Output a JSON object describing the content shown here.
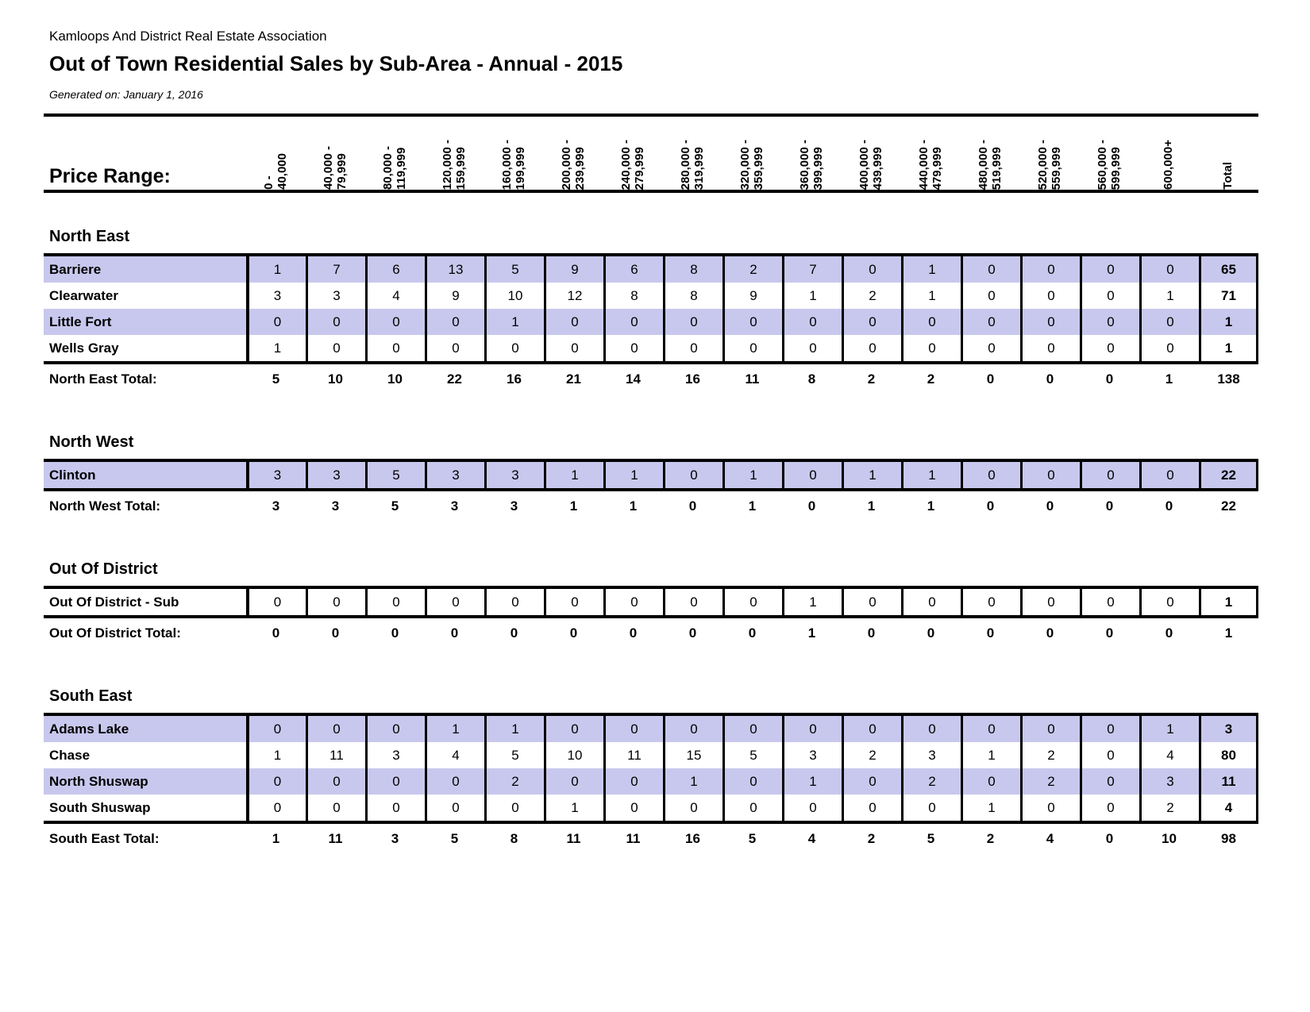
{
  "header": {
    "org": "Kamloops And District Real Estate Association",
    "title": "Out of Town Residential Sales by Sub-Area - Annual - 2015",
    "generated": "Generated on: January 1, 2016"
  },
  "price_range_label": "Price Range:",
  "columns": [
    "0 -\n40,000",
    "40,000 -\n79,999",
    "80,000 -\n119,999",
    "120,000 -\n159,999",
    "160,000 -\n199,999",
    "200,000 -\n239,999",
    "240,000 -\n279,999",
    "280,000 -\n319,999",
    "320,000 -\n359,999",
    "360,000 -\n399,999",
    "400,000 -\n439,999",
    "440,000 -\n479,999",
    "480,000 -\n519,999",
    "520,000 -\n559,999",
    "560,000 -\n599,999",
    "600,000+",
    "Total"
  ],
  "colors": {
    "band": "#c8c8ee",
    "line": "#000000"
  },
  "sections": [
    {
      "name": "North East",
      "rows": [
        {
          "label": "Barriere",
          "highlight": true,
          "values": [
            1,
            7,
            6,
            13,
            5,
            9,
            6,
            8,
            2,
            7,
            0,
            1,
            0,
            0,
            0,
            0
          ],
          "total": 65
        },
        {
          "label": "Clearwater",
          "highlight": false,
          "values": [
            3,
            3,
            4,
            9,
            10,
            12,
            8,
            8,
            9,
            1,
            2,
            1,
            0,
            0,
            0,
            1
          ],
          "total": 71
        },
        {
          "label": "Little Fort",
          "highlight": true,
          "values": [
            0,
            0,
            0,
            0,
            1,
            0,
            0,
            0,
            0,
            0,
            0,
            0,
            0,
            0,
            0,
            0
          ],
          "total": 1
        },
        {
          "label": "Wells Gray",
          "highlight": false,
          "values": [
            1,
            0,
            0,
            0,
            0,
            0,
            0,
            0,
            0,
            0,
            0,
            0,
            0,
            0,
            0,
            0
          ],
          "total": 1
        }
      ],
      "total_label": "North East Total:",
      "total_values": [
        5,
        10,
        10,
        22,
        16,
        21,
        14,
        16,
        11,
        8,
        2,
        2,
        0,
        0,
        0,
        1
      ],
      "total": 138
    },
    {
      "name": "North West",
      "rows": [
        {
          "label": "Clinton",
          "highlight": true,
          "values": [
            3,
            3,
            5,
            3,
            3,
            1,
            1,
            0,
            1,
            0,
            1,
            1,
            0,
            0,
            0,
            0
          ],
          "total": 22
        }
      ],
      "total_label": "North West Total:",
      "total_values": [
        3,
        3,
        5,
        3,
        3,
        1,
        1,
        0,
        1,
        0,
        1,
        1,
        0,
        0,
        0,
        0
      ],
      "total": 22
    },
    {
      "name": "Out Of District",
      "rows": [
        {
          "label": "Out Of District - Sub",
          "highlight": false,
          "values": [
            0,
            0,
            0,
            0,
            0,
            0,
            0,
            0,
            0,
            1,
            0,
            0,
            0,
            0,
            0,
            0
          ],
          "total": 1
        }
      ],
      "total_label": "Out Of District Total:",
      "total_values": [
        0,
        0,
        0,
        0,
        0,
        0,
        0,
        0,
        0,
        1,
        0,
        0,
        0,
        0,
        0,
        0
      ],
      "total": 1
    },
    {
      "name": "South East",
      "rows": [
        {
          "label": "Adams Lake",
          "highlight": true,
          "values": [
            0,
            0,
            0,
            1,
            1,
            0,
            0,
            0,
            0,
            0,
            0,
            0,
            0,
            0,
            0,
            1
          ],
          "total": 3
        },
        {
          "label": "Chase",
          "highlight": false,
          "values": [
            1,
            11,
            3,
            4,
            5,
            10,
            11,
            15,
            5,
            3,
            2,
            3,
            1,
            2,
            0,
            4
          ],
          "total": 80
        },
        {
          "label": "North Shuswap",
          "highlight": true,
          "values": [
            0,
            0,
            0,
            0,
            2,
            0,
            0,
            1,
            0,
            1,
            0,
            2,
            0,
            2,
            0,
            3
          ],
          "total": 11
        },
        {
          "label": "South Shuswap",
          "highlight": false,
          "values": [
            0,
            0,
            0,
            0,
            0,
            1,
            0,
            0,
            0,
            0,
            0,
            0,
            1,
            0,
            0,
            2
          ],
          "total": 4
        }
      ],
      "total_label": "South East Total:",
      "total_values": [
        1,
        11,
        3,
        5,
        8,
        11,
        11,
        16,
        5,
        4,
        2,
        5,
        2,
        4,
        0,
        10
      ],
      "total": 98
    }
  ]
}
